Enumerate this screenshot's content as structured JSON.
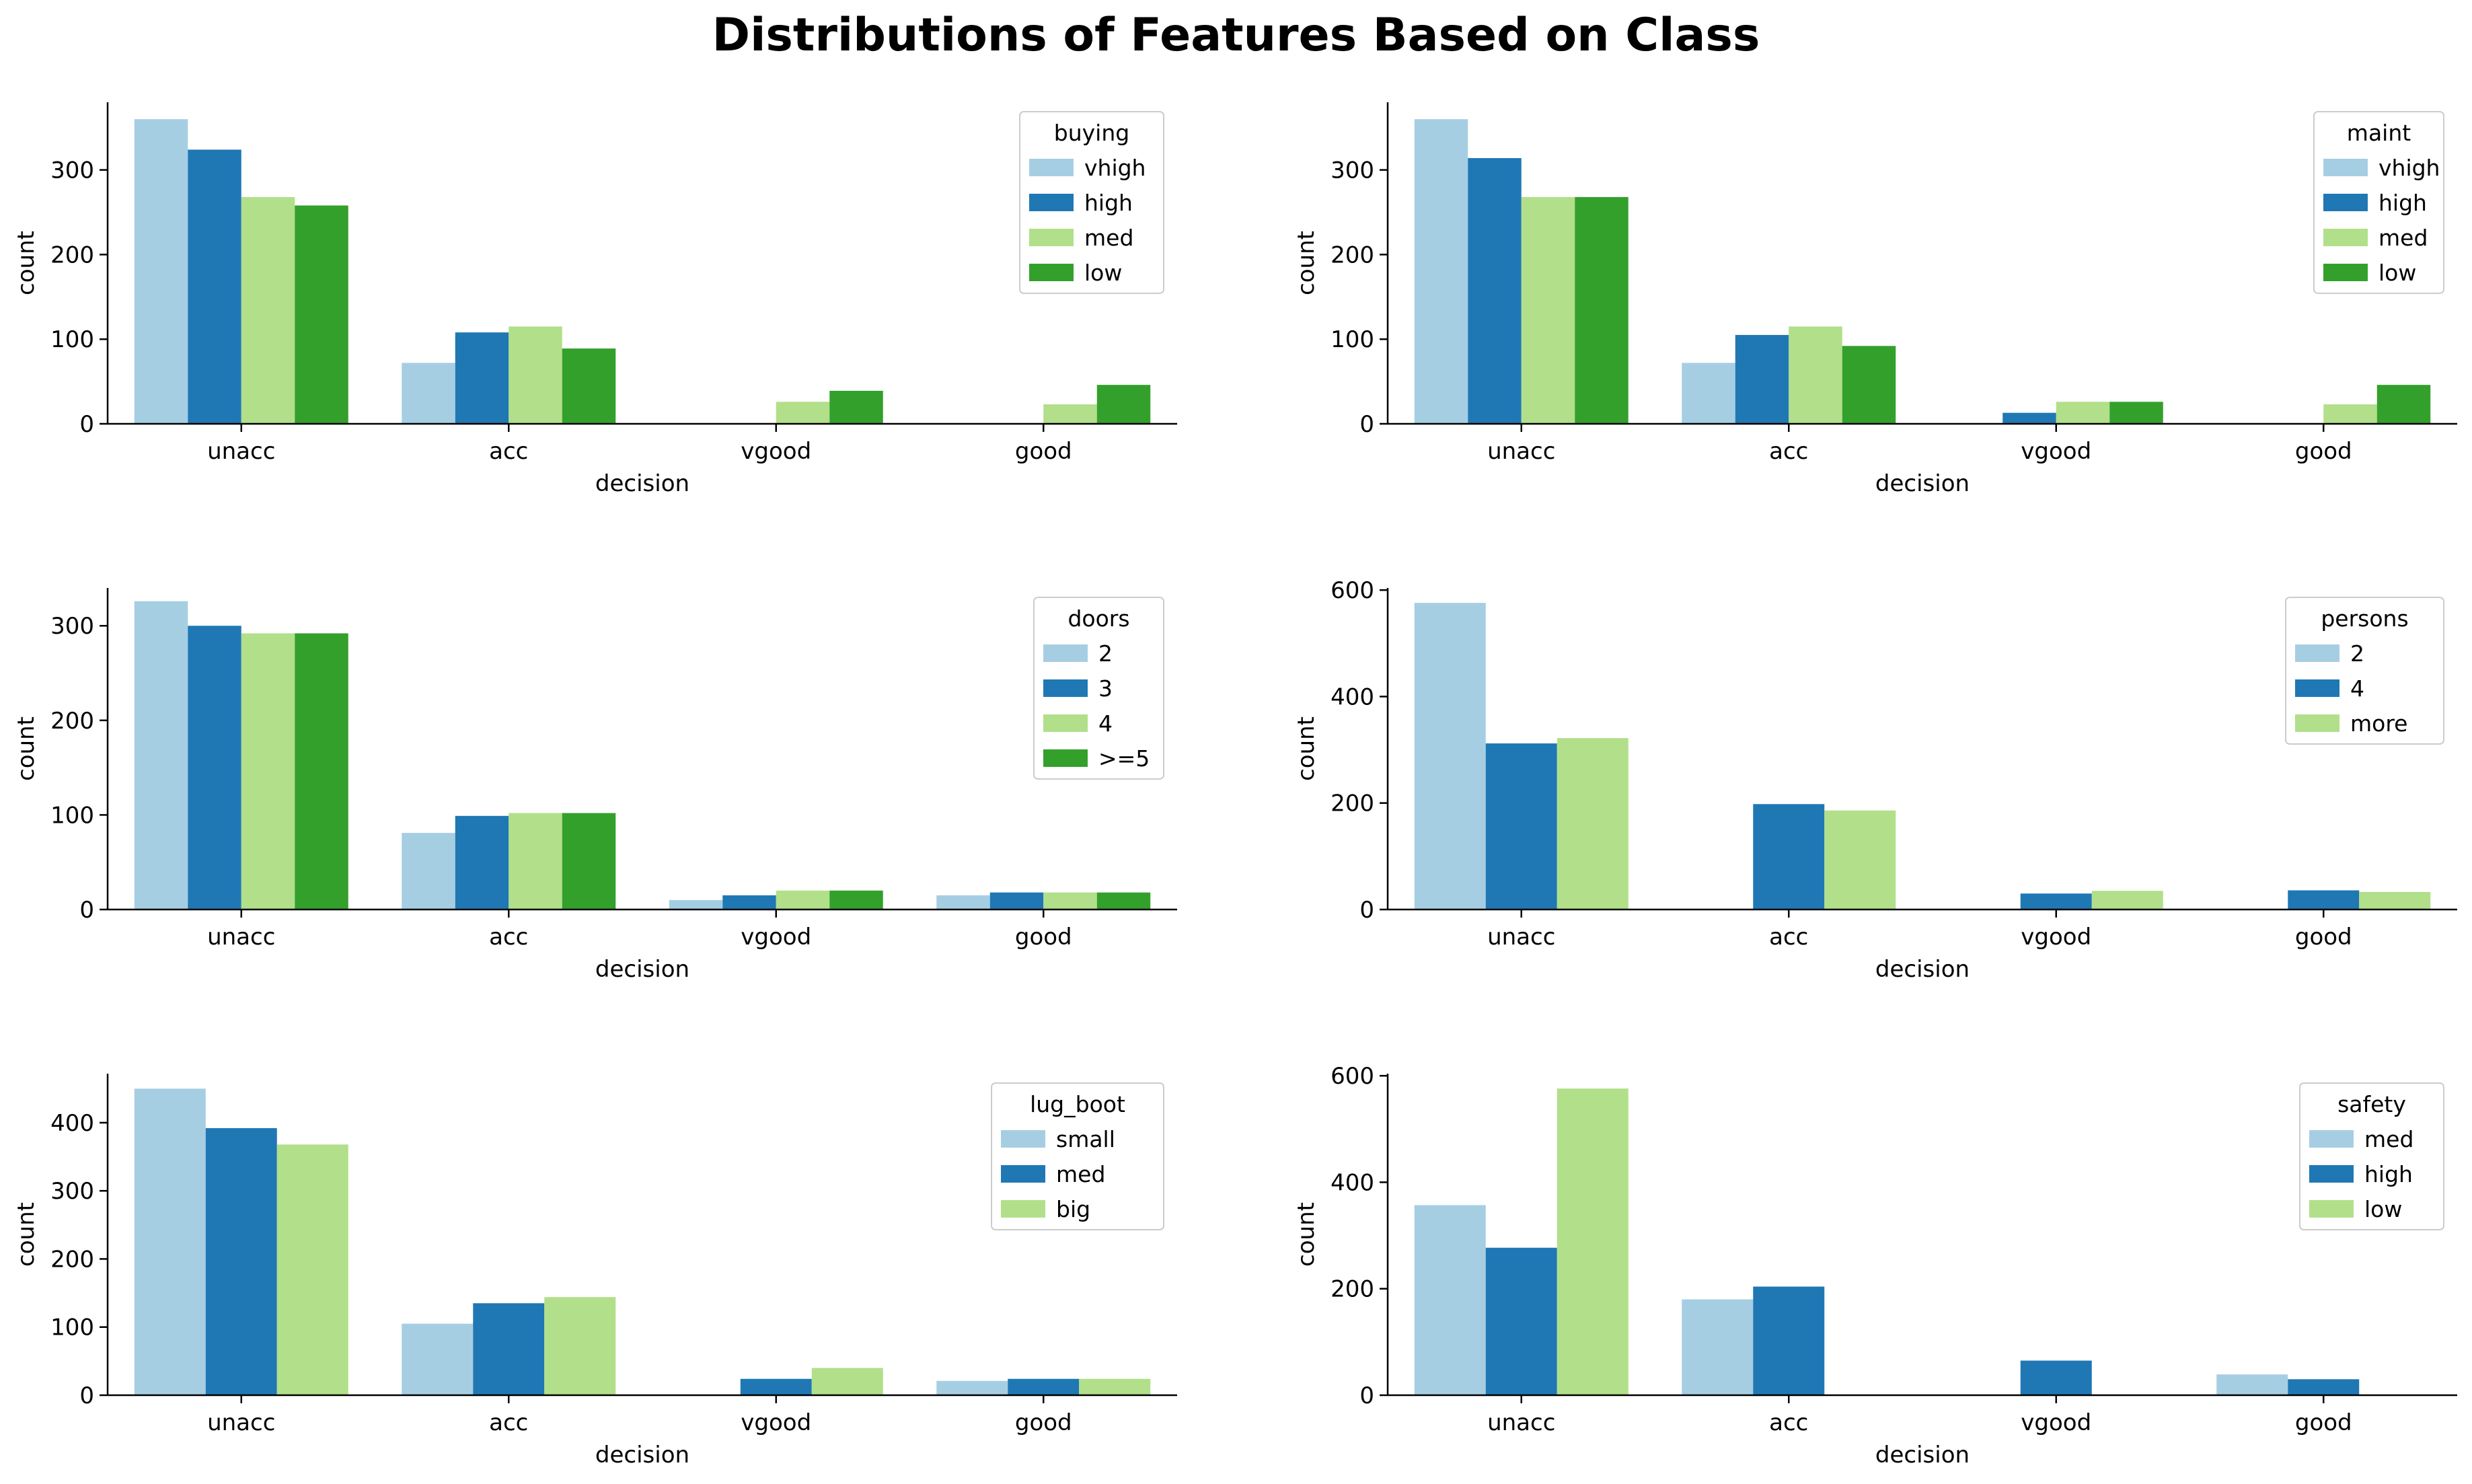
{
  "title": "Distributions of Features Based on Class",
  "palette": {
    "light_blue": "#a6cee3",
    "dark_blue": "#1f78b4",
    "light_green": "#b2df8a",
    "dark_green": "#33a02c"
  },
  "chart_data": [
    {
      "type": "bar",
      "xlabel": "decision",
      "ylabel": "count",
      "categories": [
        "unacc",
        "acc",
        "vgood",
        "good"
      ],
      "ylim": [
        0,
        380
      ],
      "yticks": [
        0,
        100,
        200,
        300
      ],
      "legend_title": "buying",
      "legend_position": "upper right",
      "grid": false,
      "series": [
        {
          "name": "vhigh",
          "values": [
            360,
            72,
            0,
            0
          ]
        },
        {
          "name": "high",
          "values": [
            324,
            108,
            0,
            0
          ]
        },
        {
          "name": "med",
          "values": [
            268,
            115,
            26,
            23
          ]
        },
        {
          "name": "low",
          "values": [
            258,
            89,
            39,
            46
          ]
        }
      ]
    },
    {
      "type": "bar",
      "xlabel": "decision",
      "ylabel": "count",
      "categories": [
        "unacc",
        "acc",
        "vgood",
        "good"
      ],
      "ylim": [
        0,
        380
      ],
      "yticks": [
        0,
        100,
        200,
        300
      ],
      "legend_title": "maint",
      "legend_position": "upper right",
      "grid": false,
      "series": [
        {
          "name": "vhigh",
          "values": [
            360,
            72,
            0,
            0
          ]
        },
        {
          "name": "high",
          "values": [
            314,
            105,
            13,
            0
          ]
        },
        {
          "name": "med",
          "values": [
            268,
            115,
            26,
            23
          ]
        },
        {
          "name": "low",
          "values": [
            268,
            92,
            26,
            46
          ]
        }
      ]
    },
    {
      "type": "bar",
      "xlabel": "decision",
      "ylabel": "count",
      "categories": [
        "unacc",
        "acc",
        "vgood",
        "good"
      ],
      "ylim": [
        0,
        340
      ],
      "yticks": [
        0,
        100,
        200,
        300
      ],
      "legend_title": "doors",
      "legend_position": "upper right",
      "grid": false,
      "series": [
        {
          "name": "2",
          "values": [
            326,
            81,
            10,
            15
          ]
        },
        {
          "name": "3",
          "values": [
            300,
            99,
            15,
            18
          ]
        },
        {
          "name": "4",
          "values": [
            292,
            102,
            20,
            18
          ]
        },
        {
          "name": ">=5",
          "values": [
            292,
            102,
            20,
            18
          ]
        }
      ]
    },
    {
      "type": "bar",
      "xlabel": "decision",
      "ylabel": "count",
      "categories": [
        "unacc",
        "acc",
        "vgood",
        "good"
      ],
      "ylim": [
        0,
        604
      ],
      "yticks": [
        0,
        200,
        400,
        600
      ],
      "legend_title": "persons",
      "legend_position": "upper right",
      "grid": false,
      "series": [
        {
          "name": "2",
          "values": [
            576,
            0,
            0,
            0
          ]
        },
        {
          "name": "4",
          "values": [
            312,
            198,
            30,
            36
          ]
        },
        {
          "name": "more",
          "values": [
            322,
            186,
            35,
            33
          ]
        }
      ]
    },
    {
      "type": "bar",
      "xlabel": "decision",
      "ylabel": "count",
      "categories": [
        "unacc",
        "acc",
        "vgood",
        "good"
      ],
      "ylim": [
        0,
        472
      ],
      "yticks": [
        0,
        100,
        200,
        300,
        400
      ],
      "legend_title": "lug_boot",
      "legend_position": "upper right",
      "grid": false,
      "series": [
        {
          "name": "small",
          "values": [
            450,
            105,
            0,
            21
          ]
        },
        {
          "name": "med",
          "values": [
            392,
            135,
            24,
            24
          ]
        },
        {
          "name": "big",
          "values": [
            368,
            144,
            40,
            24
          ]
        }
      ]
    },
    {
      "type": "bar",
      "xlabel": "decision",
      "ylabel": "count",
      "categories": [
        "unacc",
        "acc",
        "vgood",
        "good"
      ],
      "ylim": [
        0,
        604
      ],
      "yticks": [
        0,
        200,
        400,
        600
      ],
      "legend_title": "safety",
      "legend_position": "upper right",
      "grid": false,
      "series": [
        {
          "name": "med",
          "values": [
            357,
            180,
            0,
            39
          ]
        },
        {
          "name": "high",
          "values": [
            277,
            204,
            65,
            30
          ]
        },
        {
          "name": "low",
          "values": [
            576,
            0,
            0,
            0
          ]
        }
      ]
    }
  ]
}
